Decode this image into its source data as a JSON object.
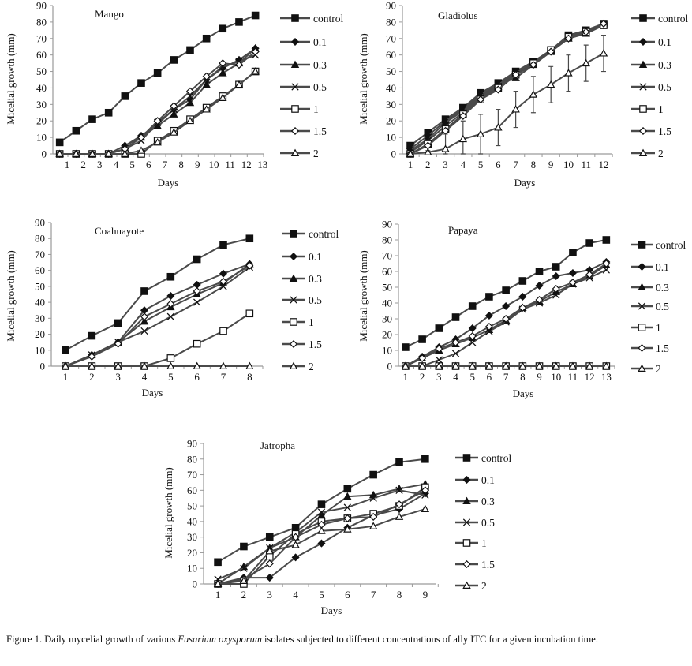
{
  "chart_data": [
    {
      "type": "line",
      "title": "Mango",
      "xlabel": "Days",
      "ylabel": "Micelial growth  (mm)",
      "x_tick_labels": [
        "1",
        "2",
        "3",
        "4",
        "5",
        "6",
        "7",
        "8",
        "9",
        "10",
        "11",
        "12",
        "13"
      ],
      "ylim": [
        0,
        90
      ],
      "y_ticks": [
        0,
        10,
        20,
        30,
        40,
        50,
        60,
        70,
        80,
        90
      ],
      "legend_position": "right",
      "x": [
        1,
        2,
        3,
        4,
        5,
        6,
        7,
        8,
        9,
        10,
        11,
        12,
        13
      ],
      "series": [
        {
          "name": "control",
          "marker": "filled-square",
          "values": [
            7,
            14,
            21,
            25,
            35,
            43,
            49,
            57,
            63,
            70,
            76,
            80,
            84
          ]
        },
        {
          "name": "0.1",
          "marker": "filled-diamond",
          "values": [
            0,
            0,
            0,
            0,
            5,
            11,
            18,
            27,
            33,
            45,
            52,
            57,
            64
          ]
        },
        {
          "name": "0.3",
          "marker": "filled-triangle",
          "values": [
            0,
            0,
            0,
            0,
            5,
            10,
            17,
            24,
            31,
            42,
            49,
            55,
            64
          ]
        },
        {
          "name": "0.5",
          "marker": "cross",
          "values": [
            0,
            0,
            0,
            0,
            3,
            8,
            19,
            27,
            35,
            45,
            53,
            56,
            60
          ]
        },
        {
          "name": "1",
          "marker": "open-square",
          "values": [
            0,
            0,
            0,
            0,
            0,
            0,
            8,
            14,
            21,
            28,
            35,
            42,
            50
          ]
        },
        {
          "name": "1.5",
          "marker": "open-diamond",
          "values": [
            0,
            0,
            0,
            0,
            3,
            10,
            20,
            29,
            38,
            47,
            55,
            54,
            62
          ]
        },
        {
          "name": "2",
          "marker": "open-triangle",
          "values": [
            0,
            0,
            0,
            0,
            0,
            2,
            7,
            13,
            20,
            27,
            34,
            42,
            50
          ]
        }
      ]
    },
    {
      "type": "line",
      "title": "Gladiolus",
      "xlabel": "Days",
      "ylabel": "Micelial growth (mm)",
      "x_tick_labels": [
        "1",
        "2",
        "3",
        "4",
        "5",
        "6",
        "7",
        "8",
        "9",
        "10",
        "11",
        "12"
      ],
      "ylim": [
        0,
        90
      ],
      "y_ticks": [
        0,
        10,
        20,
        30,
        40,
        50,
        60,
        70,
        80,
        90
      ],
      "legend_position": "right",
      "x": [
        1,
        2,
        3,
        4,
        5,
        6,
        7,
        8,
        9,
        10,
        11,
        12
      ],
      "series": [
        {
          "name": "control",
          "marker": "filled-square",
          "values": [
            5,
            13,
            21,
            28,
            37,
            43,
            50,
            56,
            63,
            72,
            75,
            79
          ]
        },
        {
          "name": "0.1",
          "marker": "filled-diamond",
          "values": [
            3,
            11,
            20,
            27,
            36,
            42,
            49,
            55,
            62,
            71,
            74,
            78
          ]
        },
        {
          "name": "0.3",
          "marker": "filled-triangle",
          "values": [
            2,
            9,
            19,
            26,
            35,
            42,
            46,
            54,
            62,
            70,
            73,
            78
          ]
        },
        {
          "name": "0.5",
          "marker": "cross",
          "values": [
            1,
            8,
            17,
            25,
            34,
            41,
            48,
            55,
            62,
            71,
            75,
            79
          ]
        },
        {
          "name": "1",
          "marker": "open-square",
          "values": [
            0,
            6,
            15,
            24,
            33,
            40,
            48,
            55,
            63,
            71,
            74,
            78
          ]
        },
        {
          "name": "1.5",
          "marker": "open-diamond",
          "values": [
            0,
            5,
            14,
            23,
            33,
            39,
            48,
            54,
            62,
            70,
            74,
            79
          ]
        },
        {
          "name": "2",
          "marker": "open-triangle",
          "values": [
            0,
            1,
            3,
            9,
            12,
            16,
            27,
            36,
            42,
            49,
            55,
            61
          ],
          "error": [
            0,
            1,
            9,
            11,
            12,
            11,
            11,
            11,
            11,
            11,
            11,
            11
          ]
        }
      ]
    },
    {
      "type": "line",
      "title": "Coahuayote",
      "xlabel": "Days",
      "ylabel": "Micelial growth  (mm)",
      "x_tick_labels": [
        "1",
        "2",
        "3",
        "4",
        "5",
        "6",
        "7",
        "8"
      ],
      "ylim": [
        0,
        90
      ],
      "y_ticks": [
        0,
        10,
        20,
        30,
        40,
        50,
        60,
        70,
        80,
        90
      ],
      "legend_position": "right",
      "x": [
        1,
        2,
        3,
        4,
        5,
        6,
        7,
        8
      ],
      "series": [
        {
          "name": "control",
          "marker": "filled-square",
          "values": [
            10,
            19,
            27,
            47,
            56,
            67,
            76,
            80
          ]
        },
        {
          "name": "0.1",
          "marker": "filled-diamond",
          "values": [
            0,
            7,
            15,
            35,
            44,
            51,
            58,
            64
          ]
        },
        {
          "name": "0.3",
          "marker": "filled-triangle",
          "values": [
            0,
            7,
            15,
            28,
            37,
            45,
            52,
            64
          ]
        },
        {
          "name": "0.5",
          "marker": "cross",
          "values": [
            0,
            7,
            15,
            22,
            31,
            40,
            50,
            62
          ]
        },
        {
          "name": "1",
          "marker": "open-square",
          "values": [
            0,
            0,
            0,
            0,
            5,
            14,
            22,
            33
          ]
        },
        {
          "name": "1.5",
          "marker": "open-diamond",
          "values": [
            0,
            6,
            14,
            31,
            39,
            47,
            53,
            63
          ]
        },
        {
          "name": "2",
          "marker": "open-triangle",
          "values": [
            0,
            0,
            0,
            0,
            0,
            0,
            0,
            0
          ]
        }
      ]
    },
    {
      "type": "line",
      "title": "Papaya",
      "xlabel": "Days",
      "ylabel": "Micelial growth  (mm)",
      "x_tick_labels": [
        "1",
        "2",
        "3",
        "4",
        "5",
        "6",
        "7",
        "8",
        "9",
        "10",
        "11",
        "12",
        "13"
      ],
      "ylim": [
        0,
        90
      ],
      "y_ticks": [
        0,
        10,
        20,
        30,
        40,
        50,
        60,
        70,
        80,
        90
      ],
      "legend_position": "right",
      "x": [
        1,
        2,
        3,
        4,
        5,
        6,
        7,
        8,
        9,
        10,
        11,
        12,
        13
      ],
      "series": [
        {
          "name": "control",
          "marker": "filled-square",
          "values": [
            12,
            17,
            24,
            31,
            38,
            44,
            48,
            54,
            60,
            63,
            72,
            78,
            80
          ]
        },
        {
          "name": "0.1",
          "marker": "filled-diamond",
          "values": [
            0,
            6,
            12,
            17,
            24,
            32,
            38,
            44,
            51,
            57,
            59,
            61,
            66
          ]
        },
        {
          "name": "0.3",
          "marker": "filled-triangle",
          "values": [
            0,
            5,
            10,
            14,
            18,
            23,
            29,
            37,
            41,
            47,
            52,
            57,
            64
          ]
        },
        {
          "name": "0.5",
          "marker": "cross",
          "values": [
            0,
            0,
            4,
            8,
            15,
            22,
            28,
            36,
            40,
            45,
            52,
            56,
            61
          ]
        },
        {
          "name": "1",
          "marker": "open-square",
          "values": [
            0,
            0,
            0,
            0,
            0,
            0,
            0,
            0,
            0,
            0,
            0,
            0,
            0
          ]
        },
        {
          "name": "1.5",
          "marker": "open-diamond",
          "values": [
            0,
            5,
            11,
            15,
            19,
            25,
            30,
            37,
            42,
            49,
            53,
            58,
            65
          ]
        },
        {
          "name": "2",
          "marker": "open-triangle",
          "values": [
            0,
            0,
            0,
            0,
            0,
            0,
            0,
            0,
            0,
            0,
            0,
            0,
            0
          ]
        }
      ]
    },
    {
      "type": "line",
      "title": "Jatropha",
      "xlabel": "Days",
      "ylabel": "Micelial growth (mm)",
      "x_tick_labels": [
        "1",
        "2",
        "3",
        "4",
        "5",
        "6",
        "7",
        "8",
        "9"
      ],
      "ylim": [
        0,
        90
      ],
      "y_ticks": [
        0,
        10,
        20,
        30,
        40,
        50,
        60,
        70,
        80,
        90
      ],
      "legend_position": "right",
      "x": [
        1,
        2,
        3,
        4,
        5,
        6,
        7,
        8,
        9
      ],
      "series": [
        {
          "name": "control",
          "marker": "filled-square",
          "values": [
            14,
            24,
            30,
            36,
            51,
            61,
            70,
            78,
            80
          ]
        },
        {
          "name": "0.1",
          "marker": "filled-diamond",
          "values": [
            0,
            4,
            4,
            17,
            26,
            36,
            44,
            48,
            58
          ]
        },
        {
          "name": "0.3",
          "marker": "filled-triangle",
          "values": [
            0,
            11,
            23,
            30,
            44,
            56,
            57,
            61,
            64
          ]
        },
        {
          "name": "0.5",
          "marker": "cross",
          "values": [
            3,
            10,
            23,
            33,
            46,
            49,
            55,
            60,
            57
          ]
        },
        {
          "name": "1",
          "marker": "open-square",
          "values": [
            0,
            0,
            18,
            32,
            40,
            42,
            45,
            50,
            62
          ]
        },
        {
          "name": "1.5",
          "marker": "open-diamond",
          "values": [
            0,
            3,
            13,
            30,
            38,
            42,
            43,
            51,
            60
          ]
        },
        {
          "name": "2",
          "marker": "open-triangle",
          "values": [
            0,
            2,
            21,
            25,
            34,
            35,
            37,
            43,
            48
          ]
        }
      ]
    }
  ],
  "caption": {
    "prefix": "Figure 1. Daily mycelial growth of various ",
    "species": "Fusarium oxysporum",
    "suffix": " isolates subjected to different concentrations of ally ITC for a given incubation time."
  },
  "colors": {
    "line": "#4a4a4a",
    "marker": "#111111",
    "axis": "#9a9a9a"
  }
}
